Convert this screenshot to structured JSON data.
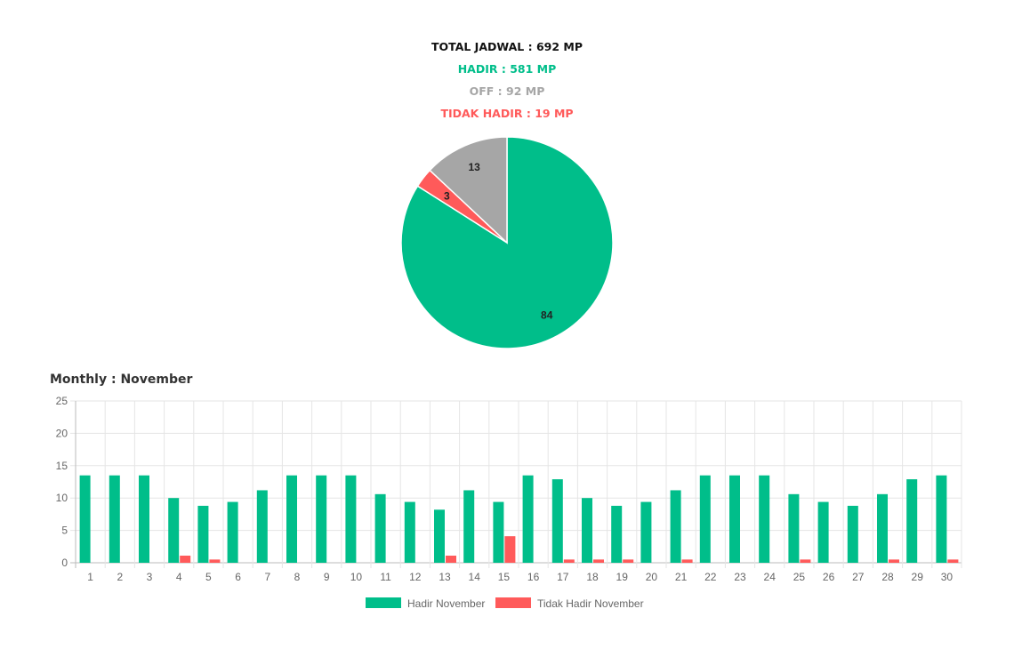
{
  "summary": {
    "total": "TOTAL JADWAL : 692 MP",
    "hadir": "HADIR : 581 MP",
    "off": "OFF : 92 MP",
    "tidak_hadir": "TIDAK HADIR : 19 MP"
  },
  "colors": {
    "hadir": "#00be8a",
    "off": "#a6a6a6",
    "tidak_hadir": "#ff5a5a"
  },
  "monthly_title": "Monthly : November",
  "chart_data": [
    {
      "type": "pie",
      "slices": [
        {
          "key": "hadir",
          "value": 84,
          "label": "84"
        },
        {
          "key": "tidak_hadir",
          "value": 3,
          "label": "3"
        },
        {
          "key": "off",
          "value": 13,
          "label": "13"
        }
      ]
    },
    {
      "type": "bar",
      "categories": [
        "1",
        "2",
        "3",
        "4",
        "5",
        "6",
        "7",
        "8",
        "9",
        "10",
        "11",
        "12",
        "13",
        "14",
        "15",
        "16",
        "17",
        "18",
        "19",
        "20",
        "21",
        "22",
        "23",
        "24",
        "25",
        "26",
        "27",
        "28",
        "29",
        "30"
      ],
      "ylim": [
        0,
        25
      ],
      "yticks": [
        0,
        5,
        10,
        15,
        20,
        25
      ],
      "grid": true,
      "legend_position": "bottom",
      "series": [
        {
          "name": "Hadir November",
          "color_key": "hadir",
          "values": [
            13.5,
            13.5,
            13.5,
            10,
            8.8,
            9.4,
            11.2,
            13.5,
            13.5,
            13.5,
            10.6,
            9.4,
            8.2,
            11.2,
            9.4,
            13.5,
            12.9,
            10,
            8.8,
            9.4,
            11.2,
            13.5,
            13.5,
            13.5,
            10.6,
            9.4,
            8.8,
            10.6,
            12.9,
            13.5
          ]
        },
        {
          "name": "Tidak Hadir November",
          "color_key": "tidak_hadir",
          "values": [
            0,
            0,
            0,
            1.1,
            0.5,
            0,
            0,
            0,
            0,
            0,
            0,
            0,
            1.1,
            0,
            4.1,
            0,
            0.5,
            0.5,
            0.5,
            0,
            0.5,
            0,
            0,
            0,
            0.5,
            0,
            0,
            0.5,
            0,
            0.5
          ]
        }
      ]
    }
  ]
}
